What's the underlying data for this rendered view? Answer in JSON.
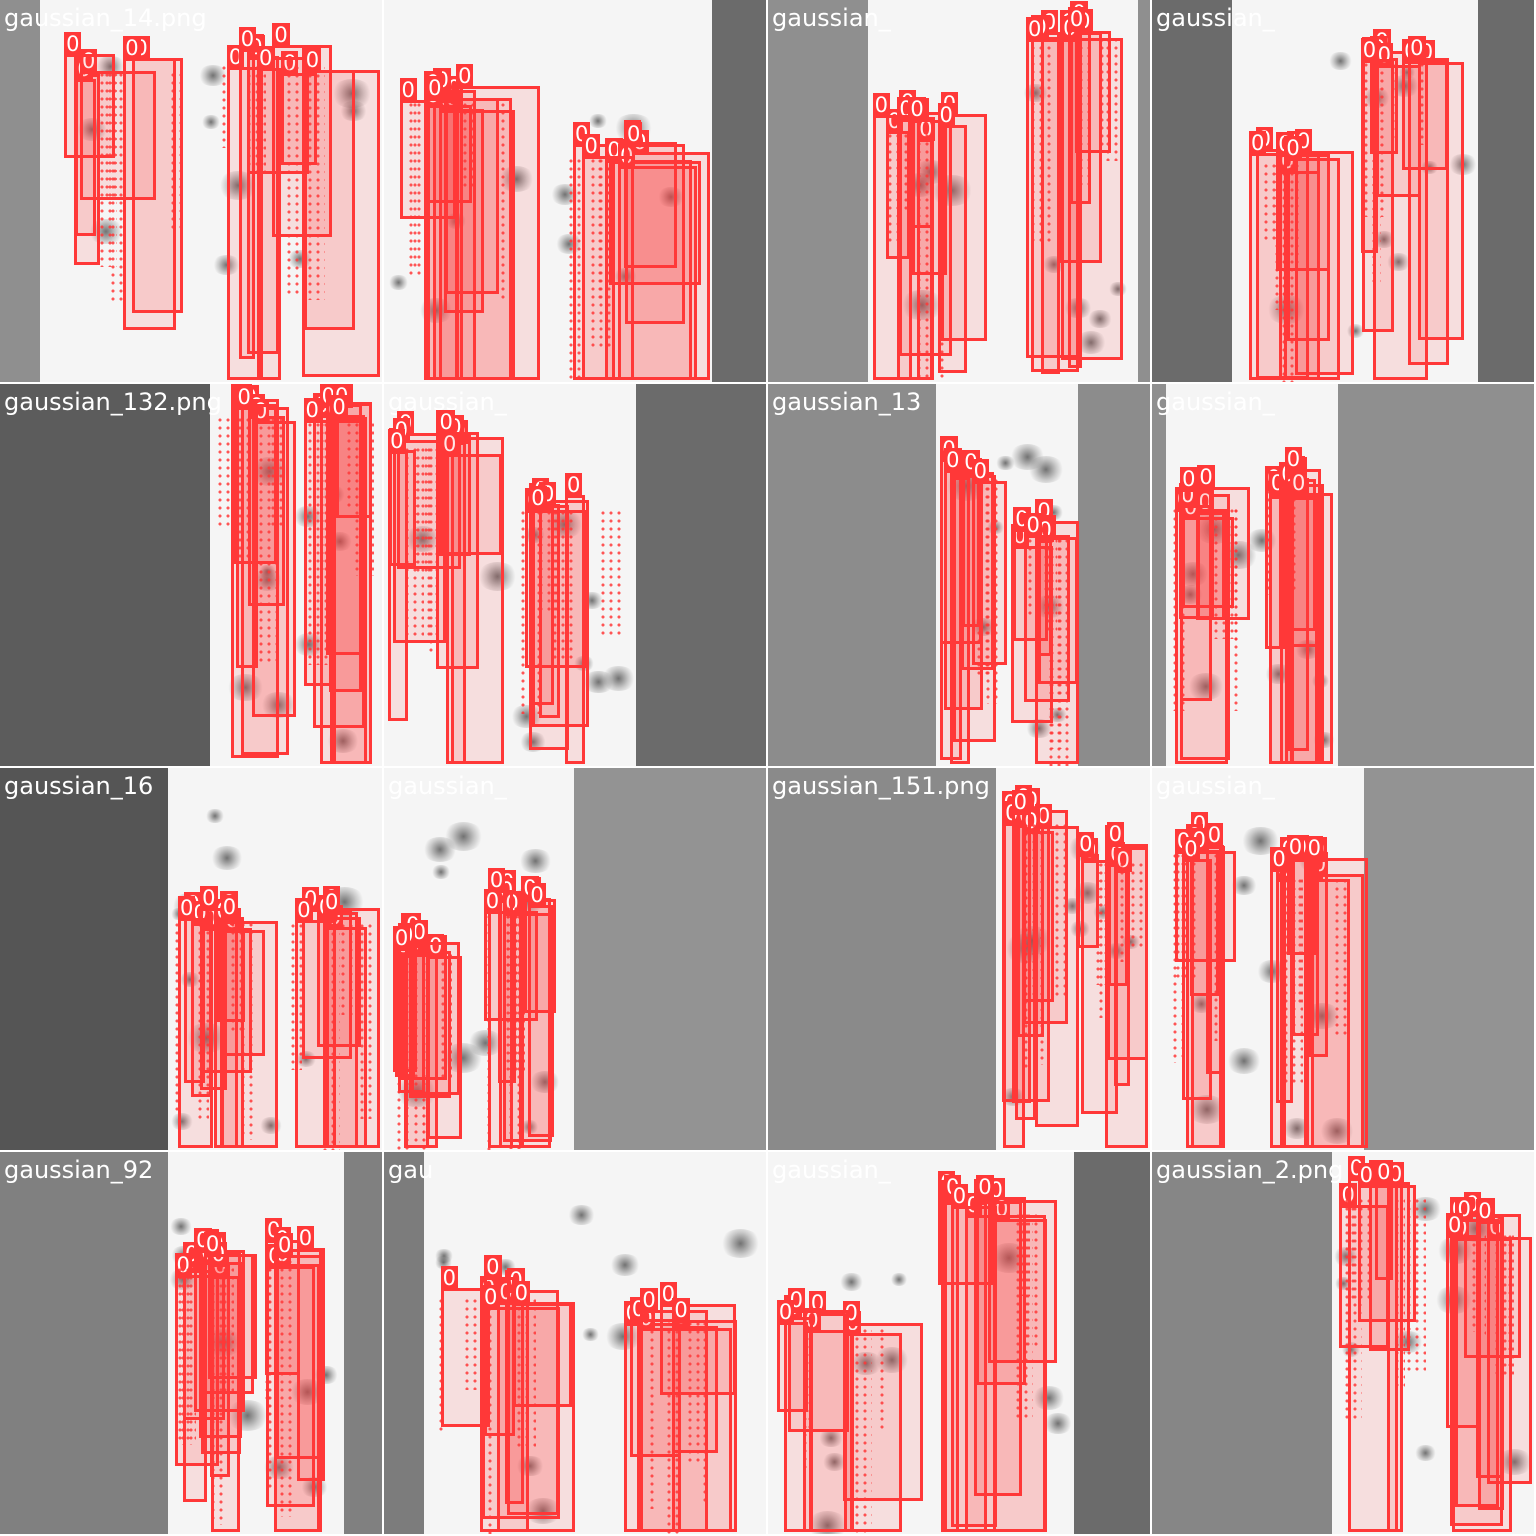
{
  "mosaic": {
    "theme": {
      "box_color": "#ff3838",
      "label_text_color": "#ffffff",
      "image_background": "#f5f5f5"
    },
    "detection_label": "0",
    "tiles": [
      {
        "id": 1,
        "filename": "gaussian_14.png",
        "background": "#8f8f8f"
      },
      {
        "id": 2,
        "filename": "",
        "background": "#6b6b6b"
      },
      {
        "id": 3,
        "filename": "gaussian_",
        "background": "#8f8f8f"
      },
      {
        "id": 4,
        "filename": "gaussian_",
        "background": "#6b6b6b"
      },
      {
        "id": 5,
        "filename": "gaussian_132.png",
        "background": "#5c5c5c"
      },
      {
        "id": 6,
        "filename": "gaussian_",
        "background": "#6b6b6b"
      },
      {
        "id": 7,
        "filename": "gaussian_13",
        "background": "#8c8c8c"
      },
      {
        "id": 8,
        "filename": "gaussian_",
        "background": "#8f8f8f"
      },
      {
        "id": 9,
        "filename": "gaussian_16",
        "background": "#555555"
      },
      {
        "id": 10,
        "filename": "gaussian_",
        "background": "#939393"
      },
      {
        "id": 11,
        "filename": "gaussian_151.png",
        "background": "#8a8a8a"
      },
      {
        "id": 12,
        "filename": "gaussian_",
        "background": "#939393"
      },
      {
        "id": 13,
        "filename": "gaussian_92",
        "background": "#808080"
      },
      {
        "id": 14,
        "filename": "gau",
        "background": "#7c7c7c"
      },
      {
        "id": 15,
        "filename": "gaussian_",
        "background": "#6b6b6b"
      },
      {
        "id": 16,
        "filename": "gaussian_2.png",
        "background": "#868686"
      }
    ]
  }
}
